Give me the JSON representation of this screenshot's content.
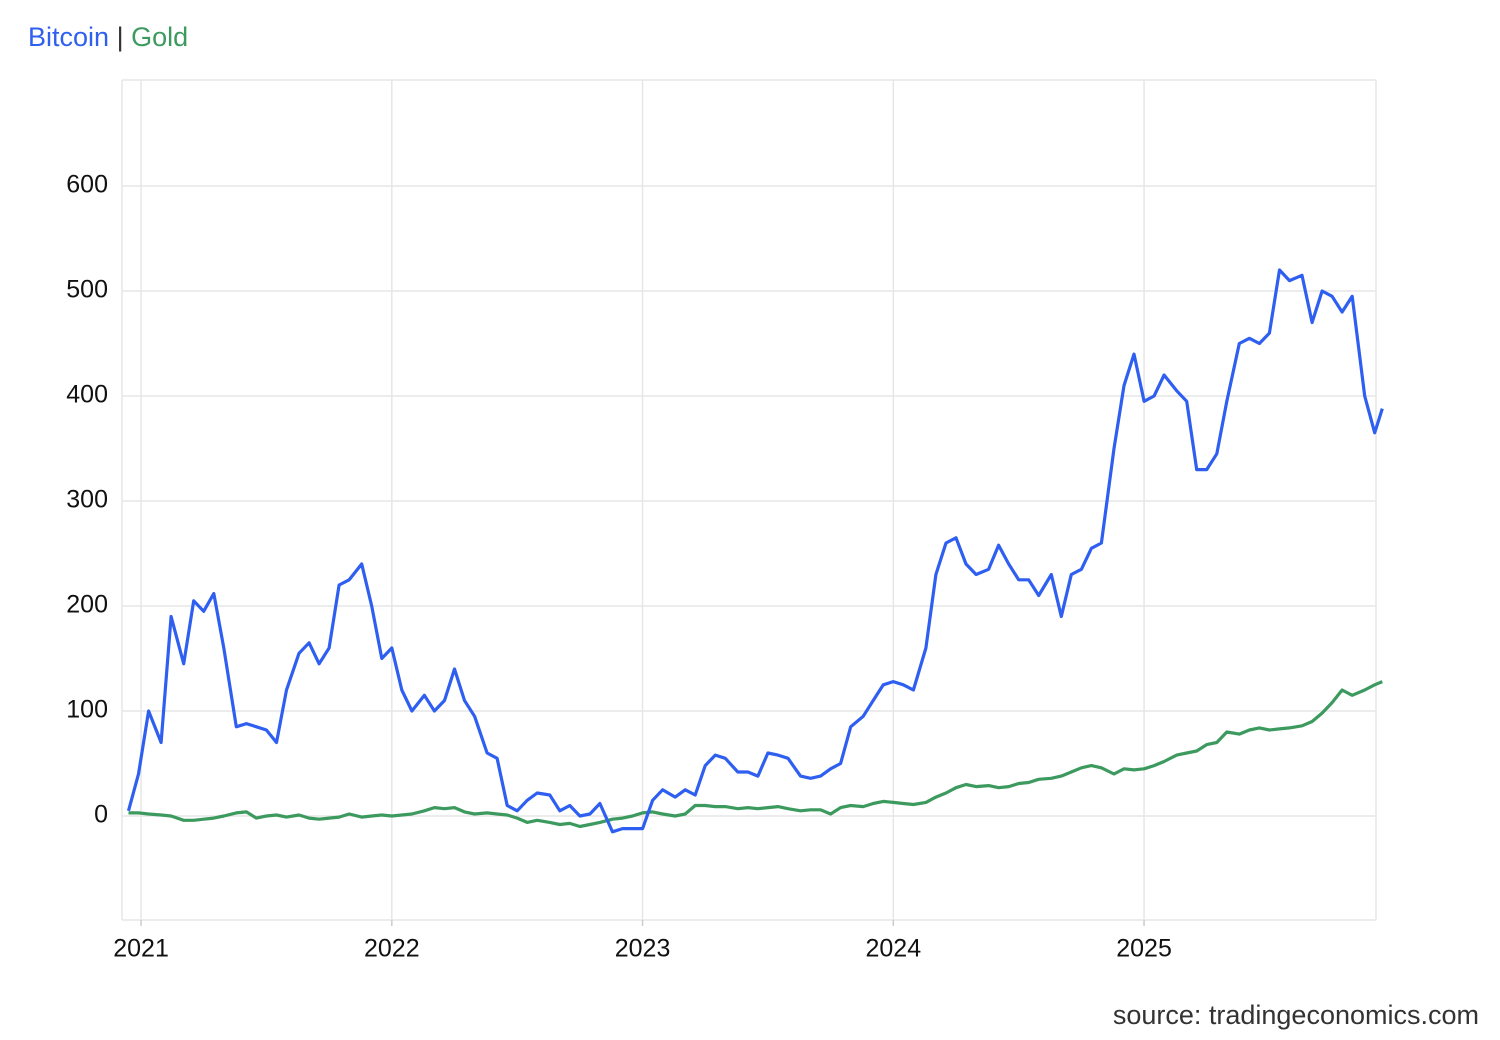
{
  "chart_data": {
    "type": "line",
    "legend_separator": "|",
    "source": "source: tradingeconomics.com",
    "x": [
      2020.95,
      2020.99,
      2021.03,
      2021.08,
      2021.12,
      2021.17,
      2021.21,
      2021.25,
      2021.29,
      2021.33,
      2021.38,
      2021.42,
      2021.46,
      2021.5,
      2021.54,
      2021.58,
      2021.63,
      2021.67,
      2021.71,
      2021.75,
      2021.79,
      2021.83,
      2021.88,
      2021.92,
      2021.96,
      2022.0,
      2022.04,
      2022.08,
      2022.13,
      2022.17,
      2022.21,
      2022.25,
      2022.29,
      2022.33,
      2022.38,
      2022.42,
      2022.46,
      2022.5,
      2022.54,
      2022.58,
      2022.63,
      2022.67,
      2022.71,
      2022.75,
      2022.79,
      2022.83,
      2022.88,
      2022.92,
      2022.96,
      2023.0,
      2023.04,
      2023.08,
      2023.13,
      2023.17,
      2023.21,
      2023.25,
      2023.29,
      2023.33,
      2023.38,
      2023.42,
      2023.46,
      2023.5,
      2023.54,
      2023.58,
      2023.63,
      2023.67,
      2023.71,
      2023.75,
      2023.79,
      2023.83,
      2023.88,
      2023.92,
      2023.96,
      2024.0,
      2024.04,
      2024.08,
      2024.13,
      2024.17,
      2024.21,
      2024.25,
      2024.29,
      2024.33,
      2024.38,
      2024.42,
      2024.46,
      2024.5,
      2024.54,
      2024.58,
      2024.63,
      2024.67,
      2024.71,
      2024.75,
      2024.79,
      2024.83,
      2024.88,
      2024.92,
      2024.96,
      2025.0,
      2025.04,
      2025.08,
      2025.13,
      2025.17,
      2025.21,
      2025.25,
      2025.29,
      2025.33,
      2025.38,
      2025.42,
      2025.46,
      2025.5,
      2025.54,
      2025.58,
      2025.63,
      2025.67,
      2025.71,
      2025.75,
      2025.79,
      2025.83,
      2025.88,
      2025.92,
      2025.95
    ],
    "series": [
      {
        "name": "Bitcoin",
        "color": "#2f5ff0",
        "values": [
          5,
          40,
          100,
          70,
          190,
          145,
          205,
          195,
          212,
          160,
          85,
          88,
          85,
          82,
          70,
          120,
          155,
          165,
          145,
          160,
          220,
          225,
          240,
          200,
          150,
          160,
          120,
          100,
          115,
          100,
          110,
          140,
          110,
          95,
          60,
          55,
          10,
          5,
          15,
          22,
          20,
          5,
          10,
          0,
          2,
          12,
          -15,
          -12,
          -12,
          -12,
          15,
          25,
          18,
          25,
          20,
          48,
          58,
          55,
          42,
          42,
          38,
          60,
          58,
          55,
          38,
          36,
          38,
          45,
          50,
          85,
          95,
          110,
          125,
          128,
          125,
          120,
          160,
          230,
          260,
          265,
          240,
          230,
          235,
          258,
          240,
          225,
          225,
          210,
          230,
          190,
          230,
          235,
          255,
          260,
          350,
          410,
          440,
          395,
          400,
          420,
          405,
          395,
          330,
          330,
          345,
          395,
          450,
          455,
          450,
          460,
          520,
          510,
          515,
          470,
          500,
          495,
          480,
          495,
          400,
          365,
          388
        ]
      },
      {
        "name": "Gold",
        "color": "#3d9a5f",
        "values": [
          3,
          3,
          2,
          1,
          0,
          -4,
          -4,
          -3,
          -2,
          0,
          3,
          4,
          -2,
          0,
          1,
          -1,
          1,
          -2,
          -3,
          -2,
          -1,
          2,
          -1,
          0,
          1,
          0,
          1,
          2,
          5,
          8,
          7,
          8,
          4,
          2,
          3,
          2,
          1,
          -2,
          -6,
          -4,
          -6,
          -8,
          -7,
          -10,
          -8,
          -6,
          -3,
          -2,
          0,
          3,
          4,
          2,
          0,
          2,
          10,
          10,
          9,
          9,
          7,
          8,
          7,
          8,
          9,
          7,
          5,
          6,
          6,
          2,
          8,
          10,
          9,
          12,
          14,
          13,
          12,
          11,
          13,
          18,
          22,
          27,
          30,
          28,
          29,
          27,
          28,
          31,
          32,
          35,
          36,
          38,
          42,
          46,
          48,
          46,
          40,
          45,
          44,
          45,
          48,
          52,
          58,
          60,
          62,
          68,
          70,
          80,
          78,
          82,
          84,
          82,
          83,
          84,
          86,
          90,
          98,
          108,
          120,
          115,
          120,
          125,
          128
        ]
      }
    ],
    "xlim": [
      2020.924,
      2025.925
    ],
    "xticks": [
      2021,
      2022,
      2023,
      2024,
      2025
    ],
    "ylim": [
      -99,
      701
    ],
    "yticks": [
      0,
      100,
      200,
      300,
      400,
      500,
      600
    ],
    "grid": true
  }
}
